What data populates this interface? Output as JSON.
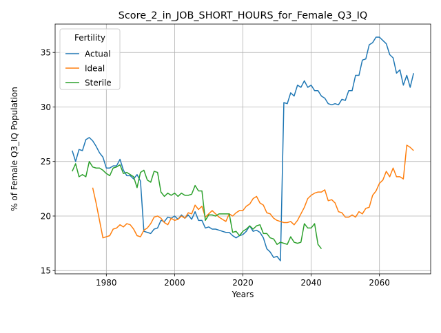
{
  "chart_data": {
    "type": "line",
    "title": "Score_2_in_JOB_SHORT_HOURS_for_Female_Q3_IQ",
    "xlabel": "Years",
    "ylabel": "% of Female Q3_IQ Population",
    "xlim": [
      1965,
      2075
    ],
    "ylim": [
      14.7,
      37.6
    ],
    "xticks": [
      1980,
      2000,
      2020,
      2040,
      2060
    ],
    "yticks": [
      15,
      20,
      25,
      30,
      35
    ],
    "grid": true,
    "legend": {
      "title": "Fertility",
      "placement": "top-left"
    },
    "series": [
      {
        "name": "Actual",
        "color": "#1f77b4",
        "x": [
          1970,
          1971,
          1972,
          1973,
          1974,
          1975,
          1976,
          1977,
          1978,
          1979,
          1980,
          1981,
          1982,
          1983,
          1984,
          1985,
          1986,
          1987,
          1988,
          1989,
          1990,
          1991,
          1992,
          1993,
          1994,
          1995,
          1996,
          1997,
          1998,
          1999,
          2000,
          2001,
          2002,
          2003,
          2004,
          2005,
          2006,
          2007,
          2008,
          2009,
          2010,
          2011,
          2012,
          2013,
          2014,
          2015,
          2016,
          2017,
          2018,
          2019,
          2020,
          2021,
          2022,
          2023,
          2024,
          2025,
          2026,
          2027,
          2028,
          2029,
          2030,
          2031,
          2032,
          2033,
          2034,
          2035,
          2036,
          2037,
          2038,
          2039,
          2040,
          2041,
          2042,
          2043,
          2044,
          2045,
          2046,
          2047,
          2048,
          2049,
          2050,
          2051,
          2052,
          2053,
          2054,
          2055,
          2056,
          2057,
          2058,
          2059,
          2060,
          2061,
          2062,
          2063,
          2064,
          2065,
          2066,
          2067,
          2068,
          2069,
          2070
        ],
        "values": [
          26.0,
          25.0,
          26.1,
          26.0,
          27.0,
          27.2,
          26.9,
          26.4,
          25.8,
          25.4,
          24.4,
          24.4,
          24.6,
          24.6,
          25.2,
          24.2,
          23.7,
          23.7,
          23.4,
          23.8,
          23.2,
          18.6,
          18.5,
          18.4,
          18.8,
          18.9,
          19.6,
          19.5,
          19.9,
          19.8,
          20.0,
          19.7,
          20.1,
          19.8,
          20.1,
          19.7,
          20.4,
          19.6,
          19.6,
          18.9,
          19.0,
          18.8,
          18.8,
          18.7,
          18.6,
          18.5,
          18.5,
          18.2,
          18.0,
          18.2,
          18.3,
          18.6,
          19.1,
          18.6,
          18.7,
          18.5,
          18.0,
          17.0,
          16.7,
          16.2,
          16.3,
          15.9,
          30.4,
          30.3,
          31.3,
          31.0,
          32.0,
          31.8,
          32.4,
          31.8,
          32.0,
          31.5,
          31.5,
          31.0,
          30.8,
          30.3,
          30.2,
          30.3,
          30.2,
          30.7,
          30.6,
          31.5,
          31.5,
          32.9,
          32.9,
          34.3,
          34.4,
          35.7,
          35.9,
          36.4,
          36.4,
          36.1,
          35.8,
          34.8,
          34.5,
          33.1,
          33.4,
          32.0,
          32.9,
          31.8,
          33.1
        ]
      },
      {
        "name": "Ideal",
        "color": "#ff7f0e",
        "x": [
          1976,
          1977,
          1978,
          1979,
          1980,
          1981,
          1982,
          1983,
          1984,
          1985,
          1986,
          1987,
          1988,
          1989,
          1990,
          1991,
          1992,
          1993,
          1994,
          1995,
          1996,
          1997,
          1998,
          1999,
          2000,
          2001,
          2002,
          2003,
          2004,
          2005,
          2006,
          2007,
          2008,
          2009,
          2010,
          2011,
          2012,
          2013,
          2014,
          2015,
          2016,
          2017,
          2018,
          2019,
          2020,
          2021,
          2022,
          2023,
          2024,
          2025,
          2026,
          2027,
          2028,
          2029,
          2030,
          2031,
          2032,
          2033,
          2034,
          2035,
          2036,
          2037,
          2038,
          2039,
          2040,
          2041,
          2042,
          2043,
          2044,
          2045,
          2046,
          2047,
          2048,
          2049,
          2050,
          2051,
          2052,
          2053,
          2054,
          2055,
          2056,
          2057,
          2058,
          2059,
          2060,
          2061,
          2062,
          2063,
          2064,
          2065,
          2066,
          2067,
          2068,
          2069,
          2070
        ],
        "values": [
          22.6,
          21.2,
          19.6,
          18.0,
          18.1,
          18.2,
          18.8,
          18.9,
          19.2,
          19.0,
          19.3,
          19.2,
          18.8,
          18.2,
          18.1,
          18.7,
          18.9,
          19.3,
          19.9,
          20.0,
          19.8,
          19.4,
          19.2,
          19.8,
          19.6,
          19.7,
          20.0,
          19.8,
          20.3,
          20.2,
          21.0,
          20.6,
          20.9,
          19.9,
          20.2,
          20.5,
          20.2,
          19.9,
          19.7,
          19.5,
          20.2,
          20.0,
          20.3,
          20.5,
          20.5,
          20.9,
          21.1,
          21.6,
          21.8,
          21.2,
          21.0,
          20.3,
          20.2,
          19.8,
          19.6,
          19.5,
          19.4,
          19.4,
          19.5,
          19.2,
          19.6,
          20.2,
          20.8,
          21.6,
          21.9,
          22.1,
          22.2,
          22.2,
          22.4,
          21.4,
          21.5,
          21.2,
          20.4,
          20.3,
          19.9,
          19.9,
          20.1,
          19.9,
          20.4,
          20.2,
          20.7,
          20.8,
          21.9,
          22.3,
          23.0,
          23.3,
          24.1,
          23.6,
          24.4,
          23.6,
          23.6,
          23.4,
          26.5,
          26.3,
          26.0
        ]
      },
      {
        "name": "Sterile",
        "color": "#2ca02c",
        "x": [
          1970,
          1971,
          1972,
          1973,
          1974,
          1975,
          1976,
          1977,
          1978,
          1979,
          1980,
          1981,
          1982,
          1983,
          1984,
          1985,
          1986,
          1987,
          1988,
          1989,
          1990,
          1991,
          1992,
          1993,
          1994,
          1995,
          1996,
          1997,
          1998,
          1999,
          2000,
          2001,
          2002,
          2003,
          2004,
          2005,
          2006,
          2007,
          2008,
          2009,
          2010,
          2011,
          2012,
          2013,
          2014,
          2015,
          2016,
          2017,
          2018,
          2019,
          2020,
          2021,
          2022,
          2023,
          2024,
          2025,
          2026,
          2027,
          2028,
          2029,
          2030,
          2031,
          2032,
          2033,
          2034,
          2035,
          2036,
          2037,
          2038,
          2039,
          2040,
          2041,
          2042,
          2043
        ],
        "values": [
          24.1,
          24.8,
          23.6,
          23.8,
          23.6,
          25.0,
          24.5,
          24.4,
          24.4,
          24.2,
          23.9,
          23.7,
          24.4,
          24.5,
          24.7,
          23.9,
          24.0,
          23.8,
          23.6,
          22.6,
          24.0,
          24.2,
          23.3,
          23.1,
          24.1,
          24.0,
          22.2,
          21.8,
          22.1,
          21.9,
          22.1,
          21.8,
          22.1,
          21.9,
          21.9,
          22.0,
          22.8,
          22.3,
          22.3,
          19.6,
          20.1,
          20.1,
          20.0,
          20.2,
          20.2,
          20.2,
          20.2,
          18.5,
          18.6,
          18.2,
          18.6,
          18.8,
          19.1,
          18.8,
          19.1,
          19.2,
          18.4,
          18.4,
          18.0,
          17.9,
          17.4,
          17.6,
          17.5,
          17.4,
          18.1,
          17.6,
          17.5,
          17.6,
          19.3,
          18.9,
          18.9,
          19.3,
          17.4,
          17.0
        ]
      }
    ]
  }
}
